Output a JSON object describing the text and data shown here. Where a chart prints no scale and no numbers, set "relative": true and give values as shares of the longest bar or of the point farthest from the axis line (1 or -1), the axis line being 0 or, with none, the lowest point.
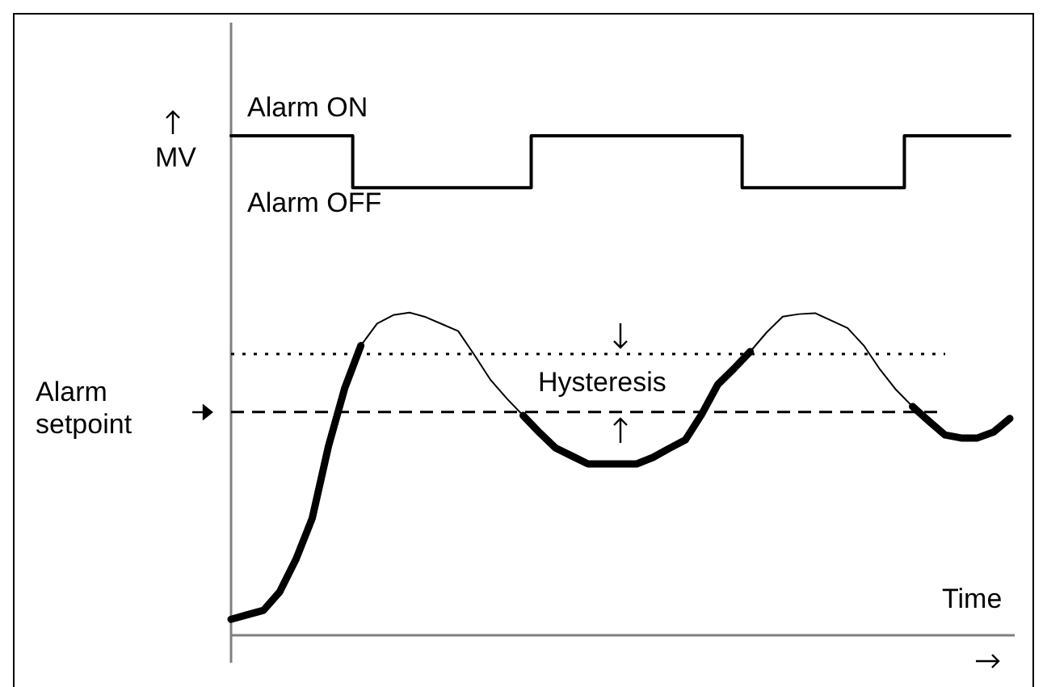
{
  "chart_data": {
    "type": "line",
    "relative": true,
    "xlabel": "Time",
    "ylabel": "MV",
    "legend": false,
    "categories": [
      null,
      null,
      null,
      null,
      null,
      null,
      null,
      null,
      null,
      null,
      null,
      null,
      null,
      null,
      null,
      null,
      null,
      null,
      null,
      null,
      null,
      null,
      null,
      null,
      null,
      null,
      null,
      null,
      null,
      null,
      null,
      null,
      null,
      null,
      null,
      null,
      null,
      null,
      null,
      null,
      null,
      null,
      null,
      null,
      null,
      null,
      null,
      null,
      null
    ],
    "series": [
      {
        "color": "#000000",
        "values": [
          0.032,
          0.041,
          0.05,
          0.087,
          0.152,
          0.234,
          0.378,
          0.494,
          0.58,
          0.624,
          0.641,
          0.646,
          0.637,
          0.623,
          0.609,
          0.561,
          0.511,
          0.474,
          0.44,
          0.406,
          0.375,
          0.359,
          0.343,
          0.343,
          0.343,
          0.343,
          0.356,
          0.374,
          0.391,
          0.442,
          0.502,
          0.534,
          0.568,
          0.606,
          0.638,
          0.643,
          0.645,
          0.63,
          0.615,
          0.58,
          0.532,
          0.491,
          0.458,
          0.429,
          0.401,
          0.395,
          0.395,
          0.407,
          0.434
        ]
      },
      {
        "color": "#000000",
        "values": [
          0.032,
          0.041,
          0.05,
          0.087,
          0.152,
          0.234,
          0.378,
          0.494,
          0.58,
          null,
          null,
          null,
          null,
          null,
          null,
          null,
          null,
          null,
          0.44,
          0.406,
          0.375,
          0.359,
          0.343,
          0.343,
          0.343,
          0.343,
          0.356,
          0.374,
          0.391,
          0.442,
          0.502,
          0.534,
          0.568,
          null,
          null,
          null,
          null,
          null,
          null,
          null,
          null,
          null,
          0.458,
          0.429,
          0.401,
          0.395,
          0.395,
          0.407,
          0.434
        ]
      },
      {
        "type": "step",
        "color": "#000000",
        "values": [
          1,
          1,
          1,
          1,
          1,
          1,
          1,
          1,
          0.896,
          0.896,
          0.896,
          0.896,
          0.896,
          0.896,
          0.896,
          0.896,
          0.896,
          0.896,
          0.896,
          1,
          1,
          1,
          1,
          1,
          1,
          1,
          1,
          1,
          1,
          1,
          1,
          1,
          0.896,
          0.896,
          0.896,
          0.896,
          0.896,
          0.896,
          0.896,
          0.896,
          0.896,
          0.896,
          1,
          1,
          1,
          1,
          1,
          1,
          1
        ]
      }
    ],
    "ref_lines": [
      {
        "axis": "y",
        "value": 0.563,
        "line_style": "dotted"
      },
      {
        "axis": "y",
        "value": 0.447,
        "line_style": "dashed",
        "label": "Alarm setpoint"
      }
    ],
    "annotations": [
      "Alarm ON",
      "Alarm OFF",
      "Hysteresis"
    ]
  }
}
